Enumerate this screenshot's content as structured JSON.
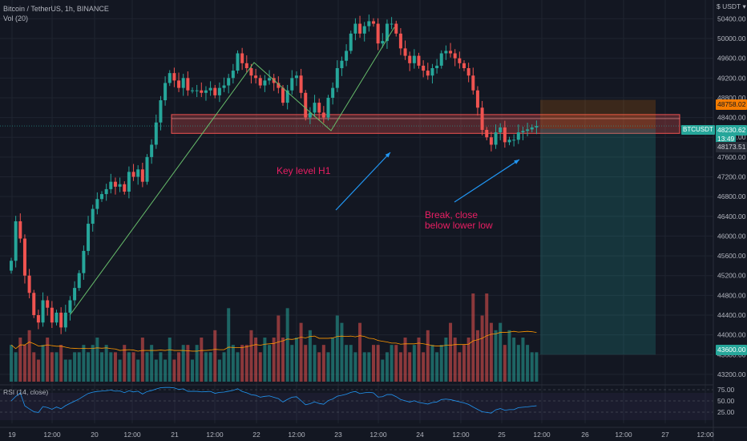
{
  "header": {
    "title": "Bitcoin / TetherUS, 1h, BINANCE",
    "vol_label": "Vol (20)",
    "currency": "USDT"
  },
  "colors": {
    "bg": "#131722",
    "up": "#26a69a",
    "down": "#ef5350",
    "grid": "#1f2430",
    "axis_text": "#b2b5be",
    "annotation": "#e91e63",
    "trendline": "#66bb6a",
    "arrow": "#2196f3",
    "rsi": "#2196f3",
    "vol_ma": "#ff9800"
  },
  "annotations": {
    "key_level": "Key level H1",
    "break_line1": "Break, close",
    "break_line2": "below lower low"
  },
  "price_labels": {
    "stop": "48758.02",
    "current": "48230.62",
    "countdown": "13:49",
    "entry": "48173.51",
    "target": "43600.00",
    "symbol": "BTCUSDT"
  },
  "rsi_label": "RSI (14, close)",
  "chart_data": {
    "type": "candlestick",
    "symbol": "BTCUSDT",
    "timeframe": "1h",
    "price_axis": {
      "range": [
        43020,
        50650
      ],
      "ticks": [
        "50400.00",
        "50000.00",
        "49600.00",
        "49200.00",
        "48800.00",
        "48400.00",
        "48000.00",
        "47600.00",
        "47200.00",
        "46800.00",
        "46400.00",
        "46000.00",
        "45600.00",
        "45200.00",
        "44800.00",
        "44400.00",
        "44000.00",
        "43600.00",
        "43200.00"
      ]
    },
    "time_axis": {
      "ticks": [
        "19",
        "12:00",
        "20",
        "12:00",
        "21",
        "12:00",
        "22",
        "12:00",
        "23",
        "12:00",
        "24",
        "12:00",
        "25",
        "12:00",
        "26",
        "12:00",
        "27",
        "12:00"
      ]
    },
    "rsi_axis": {
      "ticks": [
        "75.00",
        "50.00",
        "25.00"
      ]
    },
    "key_zone": {
      "low": 48080,
      "high": 48460
    },
    "short_position": {
      "entry": 48173.51,
      "stop": 48758.02,
      "target": 43600.0
    },
    "closes": [
      45500,
      46300,
      45950,
      45200,
      44850,
      44400,
      44250,
      44700,
      44550,
      44250,
      44450,
      44150,
      44450,
      44700,
      44950,
      45250,
      45700,
      46250,
      46550,
      46750,
      46850,
      46950,
      47100,
      47000,
      47050,
      46900,
      47300,
      47200,
      47350,
      47100,
      47600,
      47850,
      48300,
      48750,
      49100,
      49300,
      49150,
      49000,
      49200,
      48950,
      48950,
      48950,
      48900,
      48950,
      49000,
      48850,
      49000,
      49050,
      49200,
      49350,
      49700,
      49500,
      49400,
      49250,
      49200,
      49050,
      49150,
      49200,
      49100,
      49000,
      48700,
      48950,
      49200,
      49250,
      48900,
      48400,
      48500,
      48700,
      48500,
      48400,
      48800,
      49000,
      49400,
      49550,
      49750,
      50100,
      50300,
      50100,
      50250,
      50350,
      50300,
      49900,
      49950,
      50300,
      50300,
      50100,
      49800,
      49650,
      49500,
      49650,
      49450,
      49350,
      49250,
      49400,
      49450,
      49700,
      49750,
      49700,
      49600,
      49500,
      49400,
      49250,
      48950,
      48600,
      48150,
      48000,
      47850,
      48100,
      48200,
      47900,
      47950,
      47950,
      48100,
      48130,
      48160,
      48200,
      48230
    ],
    "volumes": [
      5,
      4,
      6,
      5,
      7,
      4,
      3,
      5,
      6,
      4,
      4,
      5,
      3,
      3,
      4,
      4,
      5,
      4,
      5,
      6,
      4,
      5,
      4,
      4,
      3,
      5,
      4,
      4,
      3,
      6,
      4,
      5,
      3,
      4,
      3,
      6,
      3,
      4,
      5,
      5,
      3,
      5,
      6,
      4,
      4,
      7,
      3,
      4,
      10,
      5,
      4,
      5,
      5,
      7,
      6,
      4,
      6,
      5,
      6,
      9,
      6,
      10,
      5,
      6,
      8,
      5,
      7,
      5,
      4,
      5,
      4,
      6,
      9,
      8,
      5,
      5,
      4,
      8,
      4,
      4,
      5,
      5,
      3,
      4,
      5,
      5,
      4,
      6,
      4,
      5,
      6,
      4,
      7,
      5,
      4,
      5,
      6,
      8,
      6,
      4,
      5,
      6,
      12,
      7,
      9,
      12,
      8,
      7,
      8,
      5,
      7,
      6,
      5,
      6,
      5,
      4,
      4
    ]
  }
}
